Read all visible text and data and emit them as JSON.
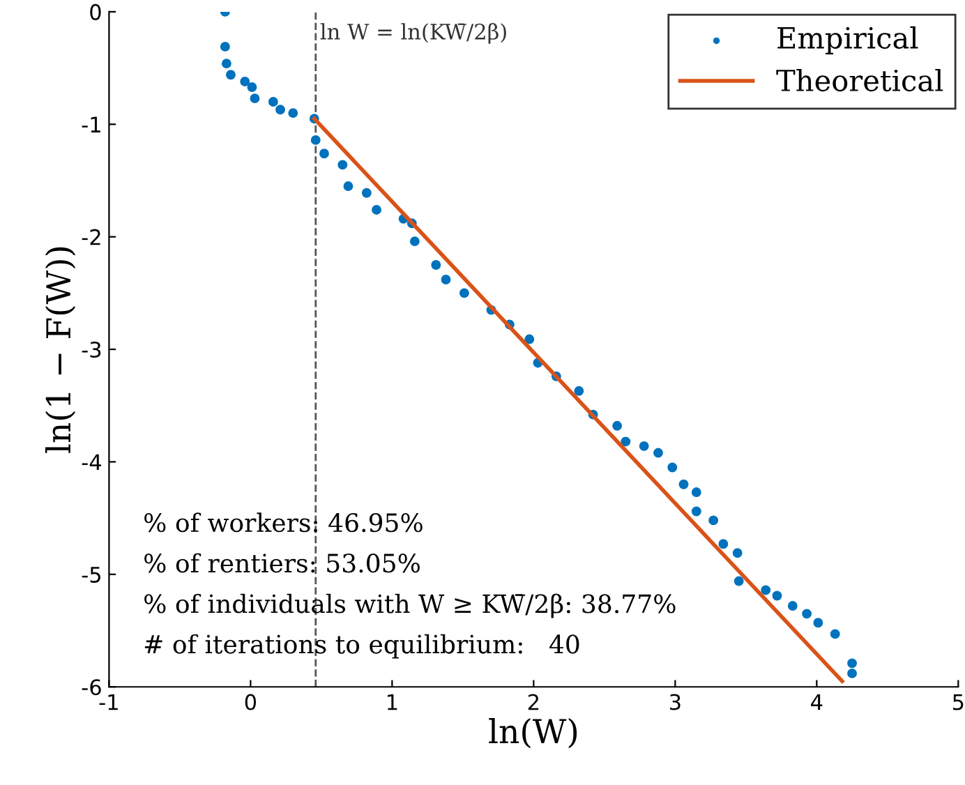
{
  "chart_data": {
    "type": "scatter",
    "xlabel": "ln(W)",
    "ylabel": "ln(1 − F(W))",
    "xlim": [
      -1,
      5
    ],
    "ylim": [
      -6,
      0
    ],
    "xticks": [
      -1,
      0,
      1,
      2,
      3,
      4,
      5
    ],
    "yticks": [
      -6,
      -5,
      -4,
      -3,
      -2,
      -1,
      0
    ],
    "grid": false,
    "legend": "top right",
    "series": [
      {
        "name": "Empirical",
        "color": "#0072bd",
        "marker": "circle",
        "x": [
          -0.18,
          -0.18,
          -0.17,
          -0.14,
          -0.04,
          0.01,
          0.03,
          0.16,
          0.21,
          0.3,
          0.45,
          0.46,
          0.52,
          0.65,
          0.69,
          0.82,
          0.89,
          1.08,
          1.14,
          1.16,
          1.31,
          1.38,
          1.51,
          1.7,
          1.83,
          1.97,
          2.03,
          2.16,
          2.32,
          2.42,
          2.59,
          2.65,
          2.78,
          2.88,
          2.98,
          3.06,
          3.15,
          3.15,
          3.27,
          3.34,
          3.44,
          3.45,
          3.64,
          3.72,
          3.83,
          3.93,
          4.01,
          4.13,
          4.25,
          4.25
        ],
        "values": [
          0,
          -0.31,
          -0.46,
          -0.56,
          -0.62,
          -0.67,
          -0.77,
          -0.8,
          -0.87,
          -0.9,
          -0.95,
          -1.14,
          -1.26,
          -1.36,
          -1.55,
          -1.61,
          -1.76,
          -1.84,
          -1.88,
          -2.04,
          -2.25,
          -2.38,
          -2.5,
          -2.65,
          -2.78,
          -2.91,
          -3.12,
          -3.24,
          -3.37,
          -3.58,
          -3.68,
          -3.82,
          -3.86,
          -3.92,
          -4.05,
          -4.2,
          -4.27,
          -4.44,
          -4.52,
          -4.73,
          -4.81,
          -5.06,
          -5.14,
          -5.19,
          -5.28,
          -5.35,
          -5.43,
          -5.53,
          -5.79,
          -5.88
        ]
      },
      {
        "name": "Theoretical",
        "type": "line",
        "color": "#d95319",
        "marker": "none",
        "line_style": "solid",
        "x": [
          0.45,
          4.18
        ],
        "values": [
          -0.95,
          -5.95
        ]
      }
    ],
    "ref_lines": [
      {
        "axis": "x",
        "value": 0.46,
        "label": "ln W = ln(KW̄/2β)",
        "color": "#555555",
        "line_style": "dashed"
      }
    ],
    "annotations": [
      "% of workers: 46.95%",
      "% of rentiers: 53.05%",
      "% of individuals with W ≥ KW̄/2β: 38.77%",
      "# of iterations to equilibrium:   40"
    ]
  }
}
